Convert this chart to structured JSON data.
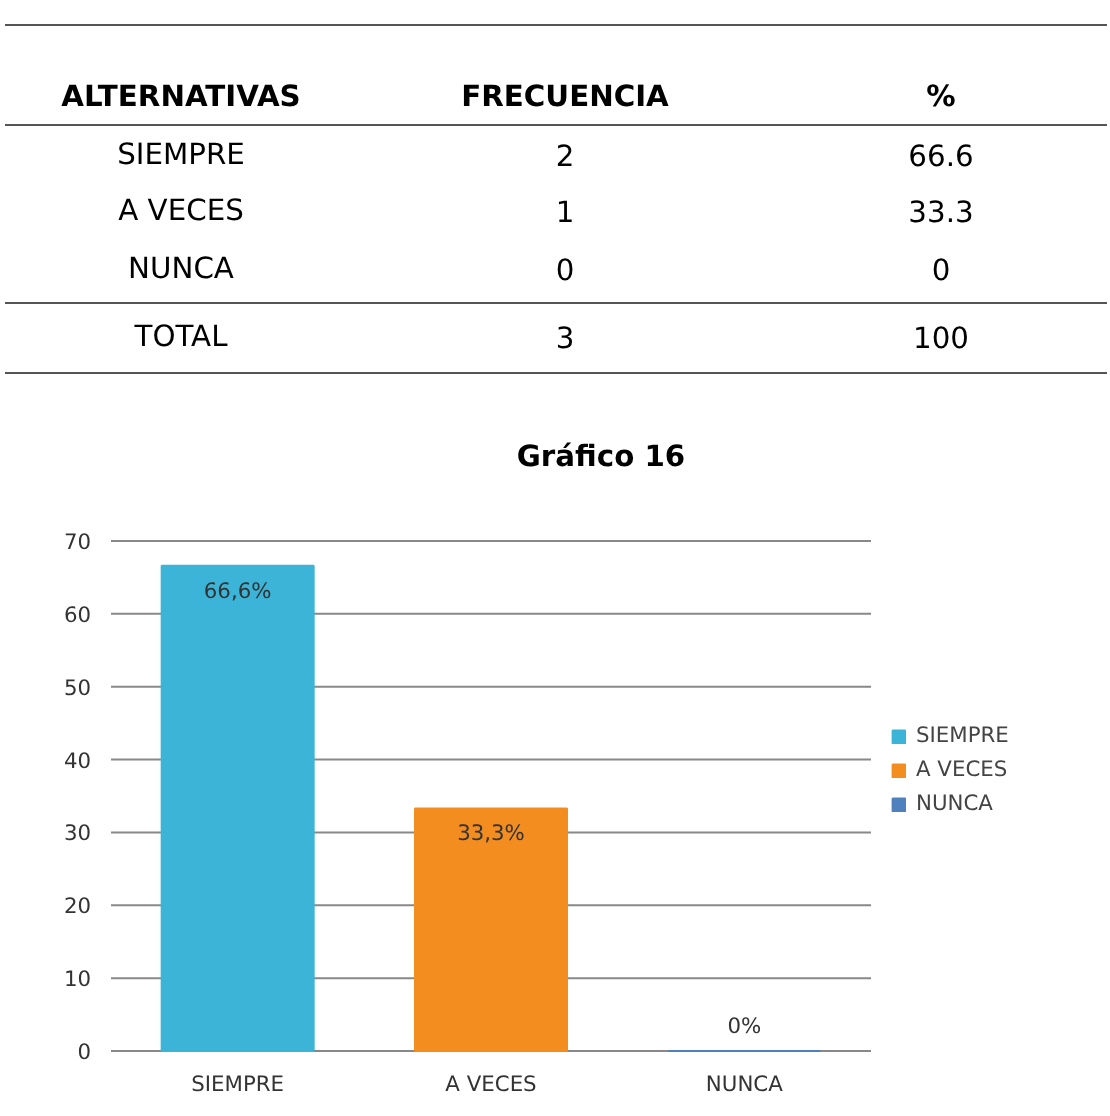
{
  "chart_data": {
    "type": "bar",
    "title": "Gráfico 16",
    "categories": [
      "SIEMPRE",
      "A VECES",
      "NUNCA"
    ],
    "series": [
      {
        "name": "SIEMPRE",
        "color": "#3cb4d8",
        "values": [
          66.6,
          null,
          null
        ],
        "value_labels": [
          "66,6%",
          null,
          null
        ]
      },
      {
        "name": "A VECES",
        "color": "#f38d1f",
        "values": [
          null,
          33.3,
          null
        ],
        "value_labels": [
          null,
          "33,3%",
          null
        ]
      },
      {
        "name": "NUNCA",
        "color": "#4f81bd",
        "values": [
          null,
          null,
          0
        ],
        "value_labels": [
          null,
          null,
          "0%"
        ]
      }
    ],
    "ylim": [
      0,
      70
    ],
    "yticks": [
      0,
      10,
      20,
      30,
      40,
      50,
      60,
      70
    ],
    "grid": "y",
    "legend": "right",
    "annotations": [
      "ALTERNATIVAS",
      "FRECUENCIA",
      "%",
      "SIEMPRE",
      "2",
      "66.6",
      "A VECES",
      "1",
      "33.3",
      "NUNCA",
      "0",
      "0",
      "TOTAL",
      "3",
      "100"
    ]
  }
}
